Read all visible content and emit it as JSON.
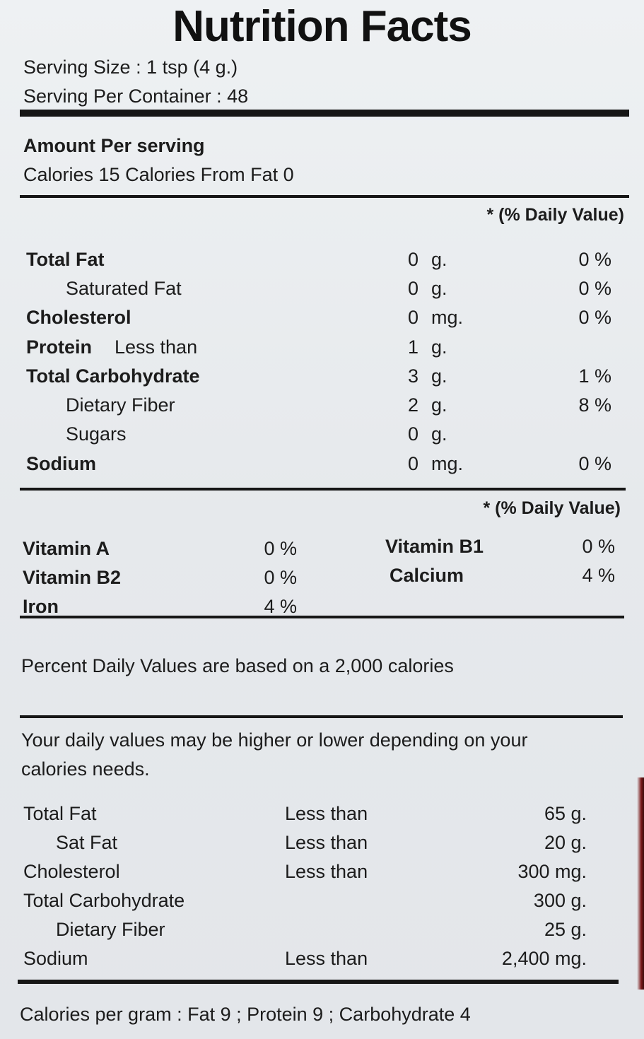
{
  "title": "Nutrition Facts",
  "serving": {
    "size": "Serving Size : 1 tsp (4 g.)",
    "per_container": "Serving Per Container : 48"
  },
  "amount": {
    "heading": "Amount Per serving",
    "calories": "Calories 15 Calories From Fat 0"
  },
  "daily_value_header": "* (% Daily Value)",
  "nutrients": [
    {
      "name": "Total Fat",
      "suffix": "",
      "qty": "0",
      "unit": "g.",
      "dv": "0 %",
      "bold": true,
      "indent": false
    },
    {
      "name": "Saturated Fat",
      "suffix": "",
      "qty": "0",
      "unit": "g.",
      "dv": "0 %",
      "bold": false,
      "indent": true
    },
    {
      "name": "Cholesterol",
      "suffix": "",
      "qty": "0",
      "unit": "mg.",
      "dv": "0 %",
      "bold": true,
      "indent": false
    },
    {
      "name": "Protein",
      "suffix": "Less than",
      "qty": "1",
      "unit": "g.",
      "dv": "",
      "bold": true,
      "indent": false
    },
    {
      "name": "Total Carbohydrate",
      "suffix": "",
      "qty": "3",
      "unit": "g.",
      "dv": "1 %",
      "bold": true,
      "indent": false
    },
    {
      "name": "Dietary Fiber",
      "suffix": "",
      "qty": "2",
      "unit": "g.",
      "dv": "8 %",
      "bold": false,
      "indent": true
    },
    {
      "name": "Sugars",
      "suffix": "",
      "qty": "0",
      "unit": "g.",
      "dv": "",
      "bold": false,
      "indent": true
    },
    {
      "name": "Sodium",
      "suffix": "",
      "qty": "0",
      "unit": "mg.",
      "dv": "0 %",
      "bold": true,
      "indent": false
    }
  ],
  "vitamins": {
    "header": "* (% Daily Value)",
    "left": [
      {
        "name": "Vitamin A",
        "dv": "0 %"
      },
      {
        "name": "Vitamin B2",
        "dv": "0 %"
      },
      {
        "name": "Iron",
        "dv": "4 %"
      }
    ],
    "right": [
      {
        "name": "Vitamin B1",
        "dv": "0 %"
      },
      {
        "name": "Calcium",
        "dv": "4 %"
      }
    ]
  },
  "footnote": {
    "basis": "Percent Daily Values are based on a 2,000 calories",
    "needs_line1": "Your daily values may be higher or lower depending on your",
    "needs_line2": "calories needs."
  },
  "reference": [
    {
      "name": "Total Fat",
      "qualifier": "Less than",
      "value": "65 g.",
      "indent": false
    },
    {
      "name": "Sat Fat",
      "qualifier": "Less than",
      "value": "20 g.",
      "indent": true
    },
    {
      "name": "Cholesterol",
      "qualifier": "Less than",
      "value": "300 mg.",
      "indent": false
    },
    {
      "name": "Total Carbohydrate",
      "qualifier": "",
      "value": "300 g.",
      "indent": false
    },
    {
      "name": "Dietary Fiber",
      "qualifier": "",
      "value": "25 g.",
      "indent": true
    },
    {
      "name": "Sodium",
      "qualifier": "Less than",
      "value": "2,400 mg.",
      "indent": false
    }
  ],
  "calories_per_gram": "Calories per gram : Fat 9 ; Protein 9 ; Carbohydrate 4"
}
